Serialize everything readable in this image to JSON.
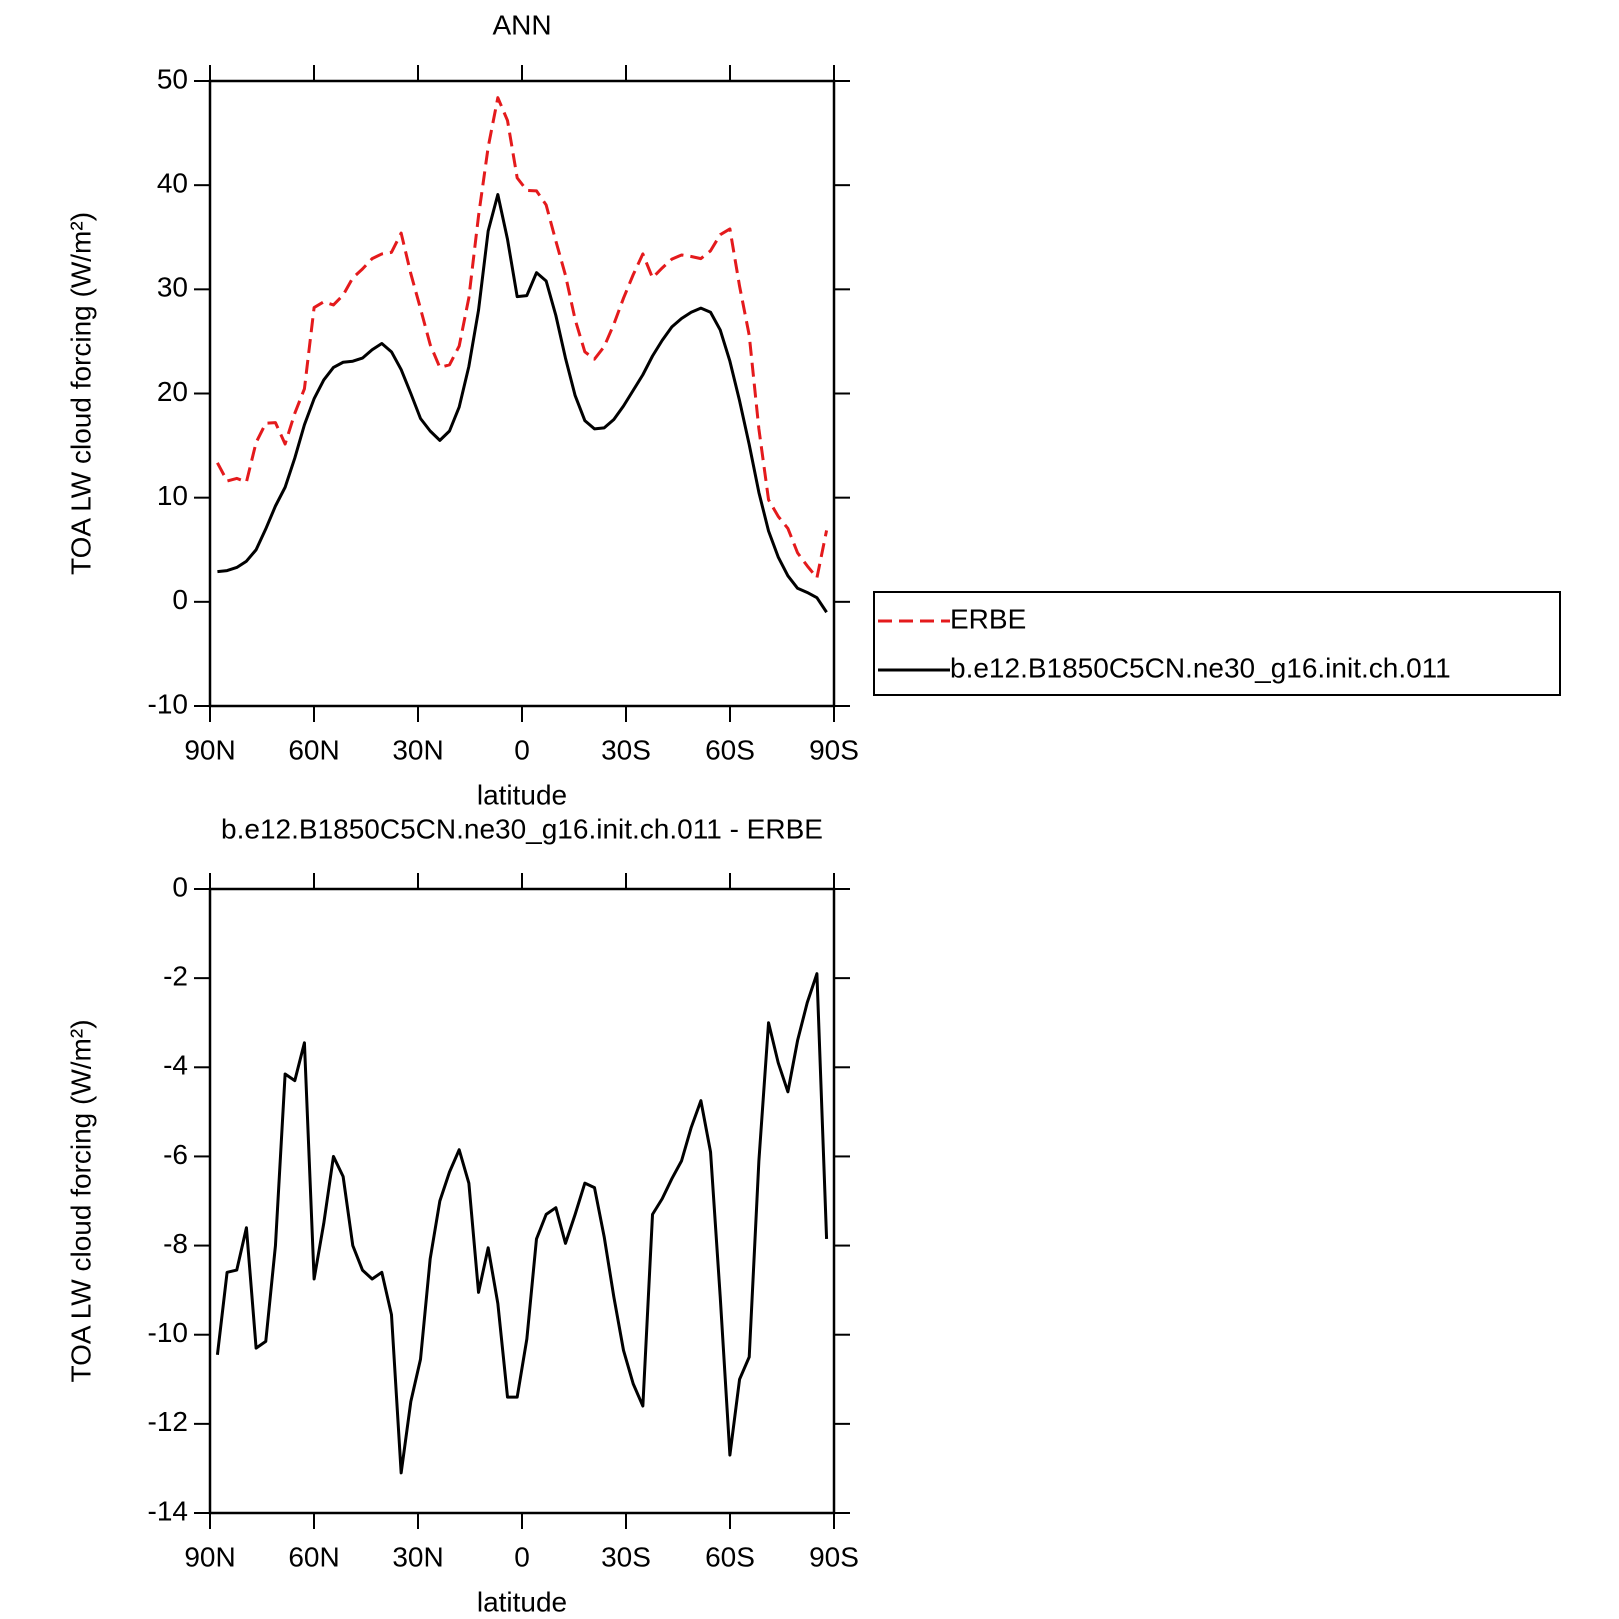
{
  "chart_data": [
    {
      "type": "line",
      "title": "ANN",
      "xlabel": "latitude",
      "ylabel": "TOA LW cloud forcing (W/m²)",
      "x": [
        87.86,
        85.07,
        82.28,
        79.49,
        76.7,
        73.91,
        71.12,
        68.33,
        65.54,
        62.76,
        59.97,
        57.18,
        54.39,
        51.6,
        48.81,
        46.02,
        43.23,
        40.44,
        37.65,
        34.86,
        32.07,
        29.28,
        26.49,
        23.7,
        20.91,
        18.12,
        15.33,
        12.54,
        9.76,
        6.97,
        4.18,
        1.39,
        -1.39,
        -4.18,
        -6.97,
        -9.76,
        -12.54,
        -15.33,
        -18.12,
        -20.91,
        -23.7,
        -26.49,
        -29.28,
        -32.07,
        -34.86,
        -37.65,
        -40.44,
        -43.23,
        -46.02,
        -48.81,
        -51.6,
        -54.39,
        -57.18,
        -59.97,
        -62.76,
        -65.54,
        -68.33,
        -71.12,
        -73.91,
        -76.7,
        -79.49,
        -82.28,
        -85.07,
        -87.86
      ],
      "xlim": [
        90,
        -90
      ],
      "xticks": [
        {
          "value": 90,
          "label": "90N"
        },
        {
          "value": 60,
          "label": "60N"
        },
        {
          "value": 30,
          "label": "30N"
        },
        0,
        {
          "value": -30,
          "label": "30S"
        },
        {
          "value": -60,
          "label": "60S"
        },
        {
          "value": -90,
          "label": "90S"
        }
      ],
      "ylim": [
        -10,
        50
      ],
      "yticks": [
        -10,
        0,
        10,
        20,
        30,
        40,
        50
      ],
      "legend": "right",
      "series": [
        {
          "name": "ERBE",
          "color": "#e41a1c",
          "linestyle": "dashed",
          "values": [
            13.35,
            11.6,
            11.85,
            11.5,
            15.3,
            17.15,
            17.2,
            15.15,
            18.1,
            20.45,
            28.25,
            28.8,
            28.5,
            29.45,
            31.1,
            31.95,
            32.95,
            33.4,
            33.55,
            35.4,
            31.5,
            28.15,
            24.7,
            22.5,
            22.75,
            24.55,
            29.2,
            37.05,
            43.65,
            48.4,
            46.2,
            40.7,
            39.5,
            39.45,
            38.1,
            34.65,
            31.35,
            27.1,
            24.0,
            23.3,
            24.5,
            26.65,
            29.15,
            31.4,
            33.4,
            31.1,
            32.05,
            32.9,
            33.3,
            33.15,
            32.95,
            33.7,
            35.25,
            35.8,
            30.3,
            25.6,
            16.6,
            9.8,
            8.2,
            7.05,
            4.7,
            3.45,
            2.3,
            6.85
          ]
        },
        {
          "name": "b.e12.B1850C5CN.ne30_g16.init.ch.011",
          "color": "#000000",
          "linestyle": "solid",
          "values": [
            2.9,
            3.0,
            3.3,
            3.9,
            5.0,
            7.0,
            9.2,
            11.0,
            13.8,
            17.0,
            19.5,
            21.3,
            22.5,
            23.0,
            23.1,
            23.4,
            24.2,
            24.8,
            24.0,
            22.3,
            20.0,
            17.6,
            16.4,
            15.5,
            16.4,
            18.7,
            22.6,
            28.0,
            35.6,
            39.1,
            34.8,
            29.3,
            29.4,
            31.6,
            30.8,
            27.5,
            23.4,
            19.8,
            17.4,
            16.6,
            16.7,
            17.5,
            18.8,
            20.3,
            21.8,
            23.6,
            25.1,
            26.4,
            27.2,
            27.8,
            28.2,
            27.8,
            26.1,
            23.1,
            19.3,
            15.1,
            10.5,
            6.8,
            4.3,
            2.5,
            1.3,
            0.9,
            0.4,
            -1.0
          ]
        }
      ]
    },
    {
      "type": "line",
      "title": "b.e12.B1850C5CN.ne30_g16.init.ch.011 - ERBE",
      "xlabel": "latitude",
      "ylabel": "TOA LW cloud forcing (W/m²)",
      "x": [
        87.86,
        85.07,
        82.28,
        79.49,
        76.7,
        73.91,
        71.12,
        68.33,
        65.54,
        62.76,
        59.97,
        57.18,
        54.39,
        51.6,
        48.81,
        46.02,
        43.23,
        40.44,
        37.65,
        34.86,
        32.07,
        29.28,
        26.49,
        23.7,
        20.91,
        18.12,
        15.33,
        12.54,
        9.76,
        6.97,
        4.18,
        1.39,
        -1.39,
        -4.18,
        -6.97,
        -9.76,
        -12.54,
        -15.33,
        -18.12,
        -20.91,
        -23.7,
        -26.49,
        -29.28,
        -32.07,
        -34.86,
        -37.65,
        -40.44,
        -43.23,
        -46.02,
        -48.81,
        -51.6,
        -54.39,
        -57.18,
        -59.97,
        -62.76,
        -65.54,
        -68.33,
        -71.12,
        -73.91,
        -76.7,
        -79.49,
        -82.28,
        -85.07,
        -87.86
      ],
      "xlim": [
        90,
        -90
      ],
      "xticks": [
        {
          "value": 90,
          "label": "90N"
        },
        {
          "value": 60,
          "label": "60N"
        },
        {
          "value": 30,
          "label": "30N"
        },
        0,
        {
          "value": -30,
          "label": "30S"
        },
        {
          "value": -60,
          "label": "60S"
        },
        {
          "value": -90,
          "label": "90S"
        }
      ],
      "ylim": [
        -14,
        0
      ],
      "yticks": [
        -14,
        -12,
        -10,
        -8,
        -6,
        -4,
        -2,
        0
      ],
      "series": [
        {
          "color": "#000000",
          "linestyle": "solid",
          "values": [
            -10.45,
            -8.6,
            -8.55,
            -7.6,
            -10.3,
            -10.15,
            -8.0,
            -4.15,
            -4.3,
            -3.45,
            -8.75,
            -7.5,
            -6.0,
            -6.45,
            -8.0,
            -8.55,
            -8.75,
            -8.6,
            -9.55,
            -13.1,
            -11.5,
            -10.55,
            -8.3,
            -7.0,
            -6.35,
            -5.85,
            -6.6,
            -9.05,
            -8.05,
            -9.3,
            -11.4,
            -11.4,
            -10.1,
            -7.85,
            -7.3,
            -7.15,
            -7.95,
            -7.3,
            -6.6,
            -6.7,
            -7.8,
            -9.15,
            -10.35,
            -11.1,
            -11.6,
            -7.3,
            -6.95,
            -6.5,
            -6.1,
            -5.35,
            -4.75,
            -5.9,
            -9.15,
            -12.7,
            -11.0,
            -10.5,
            -6.1,
            -3.0,
            -3.9,
            -4.55,
            -3.4,
            -2.55,
            -1.9,
            -7.85
          ]
        }
      ]
    }
  ]
}
